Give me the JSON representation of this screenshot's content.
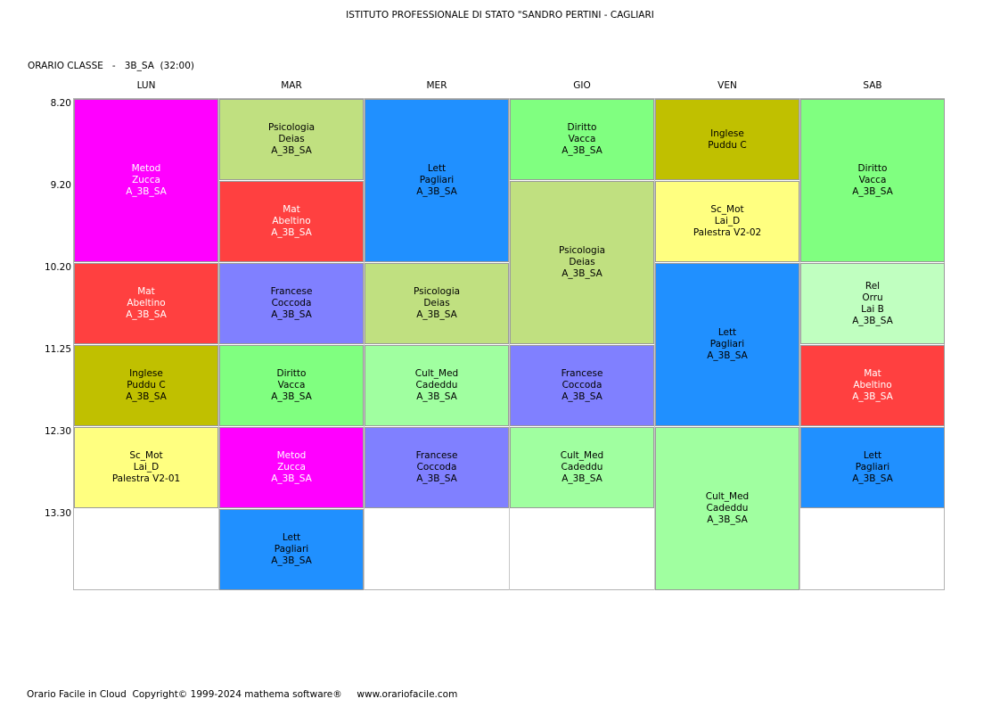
{
  "header": {
    "school": "ISTITUTO PROFESSIONALE DI STATO \"SANDRO PERTINI - CAGLIARI",
    "class_label": "ORARIO CLASSE   -   3B_SA  (32:00)"
  },
  "days": [
    "LUN",
    "MAR",
    "MER",
    "GIO",
    "VEN",
    "SAB"
  ],
  "times": [
    "8.20",
    "9.20",
    "10.20",
    "11.25",
    "12.30",
    "13.30"
  ],
  "colors": {
    "Metod": "#ff00ff",
    "Mat": "#ff4040",
    "Inglese": "#c0c000",
    "Sc_Mot": "#ffff80",
    "Psicologia": "#c0e080",
    "Francese": "#8080ff",
    "Diritto": "#80ff80",
    "Lett": "#2090ff",
    "Cult_Med": "#a0ffa0",
    "Rel": "#c0ffc0"
  },
  "lessons": [
    {
      "day": 0,
      "slot": 0,
      "span": 2,
      "subject": "Metod",
      "lines": [
        "Metod",
        "Zucca",
        "A_3B_SA"
      ],
      "text_color": "#ffffff"
    },
    {
      "day": 0,
      "slot": 2,
      "span": 1,
      "subject": "Mat",
      "lines": [
        "Mat",
        "Abeltino",
        "A_3B_SA"
      ],
      "text_color": "#ffffff"
    },
    {
      "day": 0,
      "slot": 3,
      "span": 1,
      "subject": "Inglese",
      "lines": [
        "Inglese",
        "Puddu C",
        "A_3B_SA"
      ],
      "text_color": "#000000"
    },
    {
      "day": 0,
      "slot": 4,
      "span": 1,
      "subject": "Sc_Mot",
      "lines": [
        "Sc_Mot",
        "Lai_D",
        "Palestra V2-01"
      ],
      "text_color": "#000000"
    },
    {
      "day": 1,
      "slot": 0,
      "span": 1,
      "subject": "Psicologia",
      "lines": [
        "Psicologia",
        "Deias",
        "A_3B_SA"
      ],
      "text_color": "#000000"
    },
    {
      "day": 1,
      "slot": 1,
      "span": 1,
      "subject": "Mat",
      "lines": [
        "Mat",
        "Abeltino",
        "A_3B_SA"
      ],
      "text_color": "#ffffff"
    },
    {
      "day": 1,
      "slot": 2,
      "span": 1,
      "subject": "Francese",
      "lines": [
        "Francese",
        "Coccoda",
        "A_3B_SA"
      ],
      "text_color": "#000000"
    },
    {
      "day": 1,
      "slot": 3,
      "span": 1,
      "subject": "Diritto",
      "lines": [
        "Diritto",
        "Vacca",
        "A_3B_SA"
      ],
      "text_color": "#000000"
    },
    {
      "day": 1,
      "slot": 4,
      "span": 1,
      "subject": "Metod",
      "lines": [
        "Metod",
        "Zucca",
        "A_3B_SA"
      ],
      "text_color": "#ffffff"
    },
    {
      "day": 1,
      "slot": 5,
      "span": 1,
      "subject": "Lett",
      "lines": [
        "Lett",
        "Pagliari",
        "A_3B_SA"
      ],
      "text_color": "#000000"
    },
    {
      "day": 2,
      "slot": 0,
      "span": 2,
      "subject": "Lett",
      "lines": [
        "Lett",
        "Pagliari",
        "A_3B_SA"
      ],
      "text_color": "#000000"
    },
    {
      "day": 2,
      "slot": 2,
      "span": 1,
      "subject": "Psicologia",
      "lines": [
        "Psicologia",
        "Deias",
        "A_3B_SA"
      ],
      "text_color": "#000000"
    },
    {
      "day": 2,
      "slot": 3,
      "span": 1,
      "subject": "Cult_Med",
      "lines": [
        "Cult_Med",
        "Cadeddu",
        "A_3B_SA"
      ],
      "text_color": "#000000"
    },
    {
      "day": 2,
      "slot": 4,
      "span": 1,
      "subject": "Francese",
      "lines": [
        "Francese",
        "Coccoda",
        "A_3B_SA"
      ],
      "text_color": "#000000"
    },
    {
      "day": 3,
      "slot": 0,
      "span": 1,
      "subject": "Diritto",
      "lines": [
        "Diritto",
        "Vacca",
        "A_3B_SA"
      ],
      "text_color": "#000000"
    },
    {
      "day": 3,
      "slot": 1,
      "span": 2,
      "subject": "Psicologia",
      "lines": [
        "Psicologia",
        "Deias",
        "A_3B_SA"
      ],
      "text_color": "#000000"
    },
    {
      "day": 3,
      "slot": 3,
      "span": 1,
      "subject": "Francese",
      "lines": [
        "Francese",
        "Coccoda",
        "A_3B_SA"
      ],
      "text_color": "#000000"
    },
    {
      "day": 3,
      "slot": 4,
      "span": 1,
      "subject": "Cult_Med",
      "lines": [
        "Cult_Med",
        "Cadeddu",
        "A_3B_SA"
      ],
      "text_color": "#000000"
    },
    {
      "day": 4,
      "slot": 0,
      "span": 1,
      "subject": "Inglese",
      "lines": [
        "Inglese",
        "Puddu C"
      ],
      "text_color": "#000000"
    },
    {
      "day": 4,
      "slot": 1,
      "span": 1,
      "subject": "Sc_Mot",
      "lines": [
        "Sc_Mot",
        "Lai_D",
        "Palestra V2-02"
      ],
      "text_color": "#000000"
    },
    {
      "day": 4,
      "slot": 2,
      "span": 2,
      "subject": "Lett",
      "lines": [
        "Lett",
        "Pagliari",
        "A_3B_SA"
      ],
      "text_color": "#000000"
    },
    {
      "day": 4,
      "slot": 4,
      "span": 2,
      "subject": "Cult_Med",
      "lines": [
        "Cult_Med",
        "Cadeddu",
        "A_3B_SA"
      ],
      "text_color": "#000000"
    },
    {
      "day": 5,
      "slot": 0,
      "span": 2,
      "subject": "Diritto",
      "lines": [
        "Diritto",
        "Vacca",
        "A_3B_SA"
      ],
      "text_color": "#000000"
    },
    {
      "day": 5,
      "slot": 2,
      "span": 1,
      "subject": "Rel",
      "lines": [
        "Rel",
        "Orru",
        "Lai B",
        "A_3B_SA"
      ],
      "text_color": "#000000"
    },
    {
      "day": 5,
      "slot": 3,
      "span": 1,
      "subject": "Mat",
      "lines": [
        "Mat",
        "Abeltino",
        "A_3B_SA"
      ],
      "text_color": "#ffffff"
    },
    {
      "day": 5,
      "slot": 4,
      "span": 1,
      "subject": "Lett",
      "lines": [
        "Lett",
        "Pagliari",
        "A_3B_SA"
      ],
      "text_color": "#000000"
    }
  ],
  "footer": "Orario Facile in Cloud  Copyright© 1999-2024 mathema software®     www.orariofacile.com"
}
